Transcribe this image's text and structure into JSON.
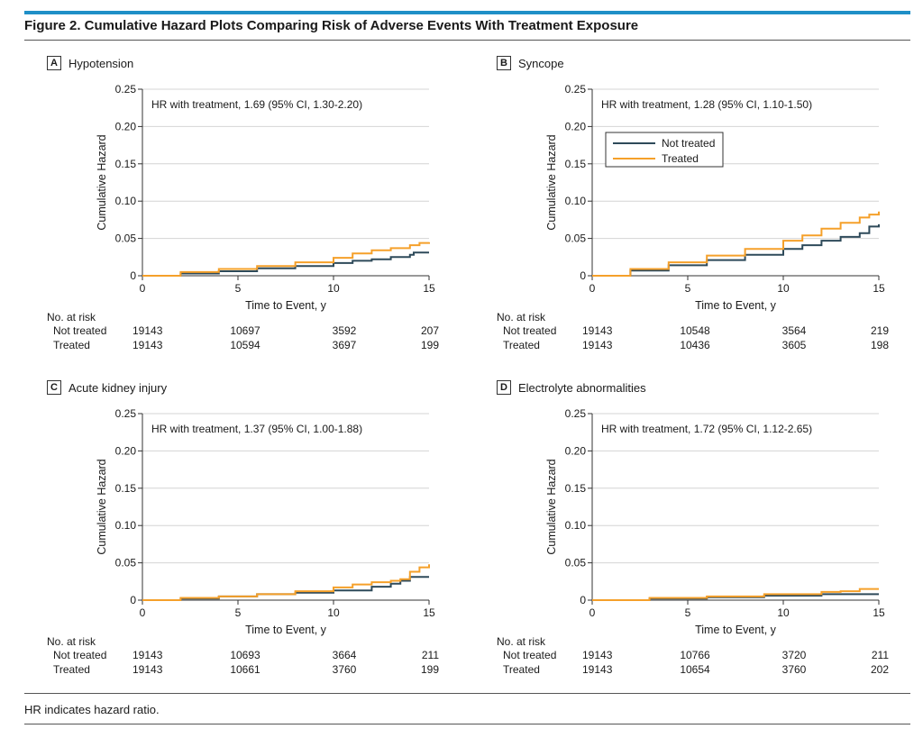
{
  "figure": {
    "title": "Figure 2. Cumulative Hazard Plots Comparing Risk of Adverse Events With Treatment Exposure",
    "footnote": "HR indicates hazard ratio."
  },
  "colors": {
    "not_treated": "#2e4a5a",
    "treated": "#f5a02a",
    "accent": "#1f8fc7"
  },
  "risk_header": "No. at risk",
  "chart_data": [
    {
      "letter": "A",
      "title": "Hypotension",
      "type": "line",
      "annotation": "HR with treatment, 1.69 (95% CI, 1.30-2.20)",
      "xlabel": "Time to Event, y",
      "ylabel": "Cumulative Hazard",
      "xlim": [
        0,
        15
      ],
      "ylim": [
        0,
        0.25
      ],
      "xticks": [
        0,
        5,
        10,
        15
      ],
      "yticks": [
        0,
        0.05,
        0.1,
        0.15,
        0.2,
        0.25
      ],
      "ytick_labels": [
        "0",
        "0.05",
        "0.10",
        "0.15",
        "0.20",
        "0.25"
      ],
      "series": [
        {
          "name": "Not treated",
          "x": [
            0,
            2,
            4,
            6,
            8,
            10,
            11,
            12,
            13,
            14,
            14.2,
            15
          ],
          "y": [
            0,
            0.003,
            0.006,
            0.01,
            0.013,
            0.017,
            0.02,
            0.022,
            0.025,
            0.028,
            0.031,
            0.031
          ]
        },
        {
          "name": "Treated",
          "x": [
            0,
            2,
            4,
            6,
            8,
            10,
            11,
            12,
            13,
            14,
            14.5,
            15
          ],
          "y": [
            0,
            0.005,
            0.009,
            0.013,
            0.018,
            0.024,
            0.03,
            0.034,
            0.037,
            0.041,
            0.044,
            0.045
          ]
        }
      ],
      "risk": {
        "rows": [
          {
            "label": "Not treated",
            "values": [
              "19143",
              "10697",
              "3592",
              "207"
            ]
          },
          {
            "label": "Treated",
            "values": [
              "19143",
              "10594",
              "3697",
              "199"
            ]
          }
        ]
      }
    },
    {
      "letter": "B",
      "title": "Syncope",
      "type": "line",
      "annotation": "HR with treatment, 1.28 (95% CI, 1.10-1.50)",
      "xlabel": "Time to Event, y",
      "ylabel": "Cumulative Hazard",
      "xlim": [
        0,
        15
      ],
      "ylim": [
        0,
        0.25
      ],
      "xticks": [
        0,
        5,
        10,
        15
      ],
      "yticks": [
        0,
        0.05,
        0.1,
        0.15,
        0.2,
        0.25
      ],
      "ytick_labels": [
        "0",
        "0.05",
        "0.10",
        "0.15",
        "0.20",
        "0.25"
      ],
      "legend": [
        "Not treated",
        "Treated"
      ],
      "series": [
        {
          "name": "Not treated",
          "x": [
            0,
            2,
            4,
            6,
            8,
            10,
            11,
            12,
            13,
            14,
            14.5,
            15
          ],
          "y": [
            0,
            0.007,
            0.014,
            0.021,
            0.028,
            0.036,
            0.041,
            0.047,
            0.052,
            0.057,
            0.066,
            0.069
          ]
        },
        {
          "name": "Treated",
          "x": [
            0,
            2,
            4,
            6,
            8,
            10,
            11,
            12,
            13,
            14,
            14.5,
            15
          ],
          "y": [
            0,
            0.009,
            0.018,
            0.027,
            0.036,
            0.047,
            0.054,
            0.063,
            0.071,
            0.078,
            0.082,
            0.086
          ]
        }
      ],
      "risk": {
        "rows": [
          {
            "label": "Not treated",
            "values": [
              "19143",
              "10548",
              "3564",
              "219"
            ]
          },
          {
            "label": "Treated",
            "values": [
              "19143",
              "10436",
              "3605",
              "198"
            ]
          }
        ]
      }
    },
    {
      "letter": "C",
      "title": "Acute kidney injury",
      "type": "line",
      "annotation": "HR with treatment, 1.37 (95% CI, 1.00-1.88)",
      "xlabel": "Time to Event, y",
      "ylabel": "Cumulative Hazard",
      "xlim": [
        0,
        15
      ],
      "ylim": [
        0,
        0.25
      ],
      "xticks": [
        0,
        5,
        10,
        15
      ],
      "yticks": [
        0,
        0.05,
        0.1,
        0.15,
        0.2,
        0.25
      ],
      "ytick_labels": [
        "0",
        "0.05",
        "0.10",
        "0.15",
        "0.20",
        "0.25"
      ],
      "series": [
        {
          "name": "Not treated",
          "x": [
            0,
            2,
            4,
            6,
            8,
            10,
            12,
            13,
            13.5,
            14,
            15
          ],
          "y": [
            0,
            0.002,
            0.005,
            0.008,
            0.01,
            0.013,
            0.018,
            0.022,
            0.026,
            0.031,
            0.031
          ]
        },
        {
          "name": "Treated",
          "x": [
            0,
            2,
            4,
            6,
            8,
            10,
            11,
            12,
            13,
            13.5,
            14,
            14.5,
            15
          ],
          "y": [
            0,
            0.003,
            0.005,
            0.008,
            0.012,
            0.017,
            0.021,
            0.024,
            0.026,
            0.028,
            0.038,
            0.044,
            0.048
          ]
        }
      ],
      "risk": {
        "rows": [
          {
            "label": "Not treated",
            "values": [
              "19143",
              "10693",
              "3664",
              "211"
            ]
          },
          {
            "label": "Treated",
            "values": [
              "19143",
              "10661",
              "3760",
              "199"
            ]
          }
        ]
      }
    },
    {
      "letter": "D",
      "title": "Electrolyte abnormalities",
      "type": "line",
      "annotation": "HR with treatment, 1.72 (95% CI, 1.12-2.65)",
      "xlabel": "Time to Event, y",
      "ylabel": "Cumulative Hazard",
      "xlim": [
        0,
        15
      ],
      "ylim": [
        0,
        0.25
      ],
      "xticks": [
        0,
        5,
        10,
        15
      ],
      "yticks": [
        0,
        0.05,
        0.1,
        0.15,
        0.2,
        0.25
      ],
      "ytick_labels": [
        "0",
        "0.05",
        "0.10",
        "0.15",
        "0.20",
        "0.25"
      ],
      "series": [
        {
          "name": "Not treated",
          "x": [
            0,
            3,
            6,
            9,
            12,
            15
          ],
          "y": [
            0,
            0.002,
            0.004,
            0.006,
            0.008,
            0.008
          ]
        },
        {
          "name": "Treated",
          "x": [
            0,
            3,
            6,
            9,
            12,
            13,
            14,
            15
          ],
          "y": [
            0,
            0.003,
            0.005,
            0.008,
            0.011,
            0.012,
            0.015,
            0.015
          ]
        }
      ],
      "risk": {
        "rows": [
          {
            "label": "Not treated",
            "values": [
              "19143",
              "10766",
              "3720",
              "211"
            ]
          },
          {
            "label": "Treated",
            "values": [
              "19143",
              "10654",
              "3760",
              "202"
            ]
          }
        ]
      }
    }
  ]
}
